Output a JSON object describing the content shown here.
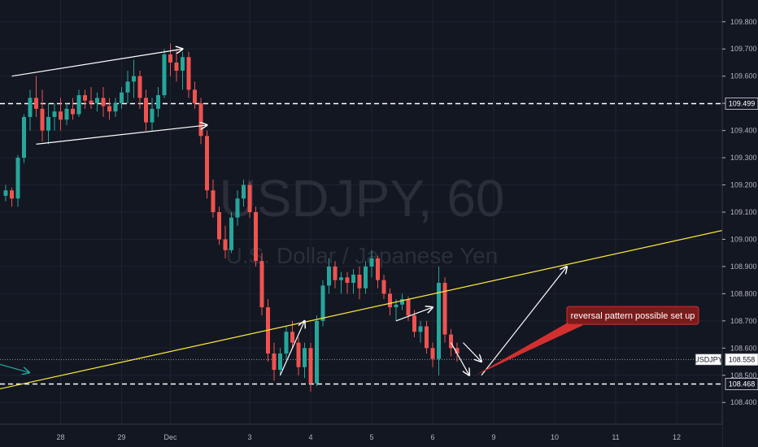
{
  "chart_data": {
    "type": "candlestick",
    "symbol": "USDJPY",
    "interval": "60",
    "instrument_name": "U.S. Dollar / Japanese Yen",
    "y_axis": {
      "ticks": [
        "109.800",
        "109.700",
        "109.600",
        "109.500",
        "109.400",
        "109.300",
        "109.200",
        "109.100",
        "109.000",
        "108.900",
        "108.800",
        "108.700",
        "108.600",
        "108.500",
        "108.400"
      ],
      "ylim": [
        108.32,
        109.88
      ]
    },
    "x_axis": {
      "ticks": [
        "28",
        "29",
        "Dec",
        "3",
        "4",
        "5",
        "6",
        "9",
        "10",
        "11",
        "12"
      ],
      "tick_index": [
        9,
        19,
        27,
        40,
        50,
        60,
        70,
        80,
        90,
        100,
        110
      ]
    },
    "price_tags": [
      {
        "label": "109.499",
        "value": 109.499,
        "style": "outline"
      },
      {
        "label": "USDJPY",
        "value": 108.558,
        "style": "name"
      },
      {
        "label": "108.558",
        "value": 108.558,
        "style": "filled"
      },
      {
        "label": "108.468",
        "value": 108.468,
        "style": "outline"
      }
    ],
    "horizontal_lines": [
      {
        "value": 109.499,
        "style": "dashed"
      },
      {
        "value": 108.468,
        "style": "dashed"
      },
      {
        "value": 108.558,
        "style": "dotted"
      }
    ],
    "trendline": {
      "from": [
        -3,
        108.44
      ],
      "to": [
        119,
        109.04
      ],
      "color": "#ffeb3b"
    },
    "arrows": [
      {
        "from": [
          1,
          109.6
        ],
        "to": [
          29,
          109.7
        ]
      },
      {
        "from": [
          5,
          109.35
        ],
        "to": [
          33,
          109.42
        ]
      },
      {
        "from": [
          45,
          108.5
        ],
        "to": [
          49,
          108.7
        ]
      },
      {
        "from": [
          64,
          108.7
        ],
        "to": [
          70,
          108.75
        ]
      },
      {
        "from": [
          73,
          108.62
        ],
        "to": [
          76,
          108.5
        ]
      },
      {
        "from": [
          75,
          108.62
        ],
        "to": [
          78,
          108.55
        ]
      },
      {
        "from": [
          78,
          108.5
        ],
        "to": [
          92,
          108.9
        ]
      }
    ],
    "annotation": {
      "text": "reversal pattern possible set up",
      "anchor": [
        77,
        108.5
      ],
      "box": [
        92,
        108.72
      ],
      "color": "#d32f2f"
    },
    "candles": [
      [
        109.16,
        109.2,
        109.14,
        109.18
      ],
      [
        109.18,
        109.19,
        109.12,
        109.15
      ],
      [
        109.15,
        109.31,
        109.12,
        109.3
      ],
      [
        109.3,
        109.46,
        109.28,
        109.45
      ],
      [
        109.45,
        109.55,
        109.4,
        109.52
      ],
      [
        109.52,
        109.6,
        109.45,
        109.48
      ],
      [
        109.48,
        109.55,
        109.36,
        109.4
      ],
      [
        109.4,
        109.5,
        109.35,
        109.45
      ],
      [
        109.45,
        109.5,
        109.4,
        109.47
      ],
      [
        109.47,
        109.52,
        109.4,
        109.44
      ],
      [
        109.44,
        109.5,
        109.42,
        109.48
      ],
      [
        109.48,
        109.52,
        109.44,
        109.46
      ],
      [
        109.46,
        109.55,
        109.45,
        109.53
      ],
      [
        109.53,
        109.55,
        109.48,
        109.51
      ],
      [
        109.51,
        109.56,
        109.48,
        109.5
      ],
      [
        109.5,
        109.54,
        109.47,
        109.52
      ],
      [
        109.52,
        109.56,
        109.45,
        109.49
      ],
      [
        109.49,
        109.52,
        109.44,
        109.47
      ],
      [
        109.47,
        109.52,
        109.45,
        109.5
      ],
      [
        109.5,
        109.56,
        109.48,
        109.54
      ],
      [
        109.54,
        109.62,
        109.5,
        109.58
      ],
      [
        109.58,
        109.66,
        109.52,
        109.6
      ],
      [
        109.6,
        109.62,
        109.48,
        109.52
      ],
      [
        109.52,
        109.55,
        109.4,
        109.43
      ],
      [
        109.43,
        109.52,
        109.4,
        109.48
      ],
      [
        109.48,
        109.56,
        109.45,
        109.53
      ],
      [
        109.53,
        109.7,
        109.52,
        109.68
      ],
      [
        109.68,
        109.72,
        109.6,
        109.65
      ],
      [
        109.65,
        109.7,
        109.58,
        109.62
      ],
      [
        109.62,
        109.69,
        109.55,
        109.67
      ],
      [
        109.67,
        109.69,
        109.52,
        109.55
      ],
      [
        109.55,
        109.58,
        109.48,
        109.5
      ],
      [
        109.5,
        109.52,
        109.35,
        109.38
      ],
      [
        109.38,
        109.4,
        109.15,
        109.18
      ],
      [
        109.18,
        109.22,
        109.08,
        109.1
      ],
      [
        109.1,
        109.12,
        108.98,
        109.0
      ],
      [
        109.0,
        109.05,
        108.93,
        108.96
      ],
      [
        108.96,
        109.1,
        108.95,
        109.08
      ],
      [
        109.08,
        109.18,
        109.05,
        109.15
      ],
      [
        109.15,
        109.22,
        109.12,
        109.2
      ],
      [
        109.2,
        109.21,
        109.08,
        109.1
      ],
      [
        109.1,
        109.12,
        108.9,
        108.92
      ],
      [
        108.92,
        108.95,
        108.72,
        108.75
      ],
      [
        108.75,
        108.78,
        108.55,
        108.58
      ],
      [
        108.58,
        108.62,
        108.48,
        108.52
      ],
      [
        108.52,
        108.6,
        108.5,
        108.58
      ],
      [
        108.58,
        108.68,
        108.56,
        108.66
      ],
      [
        108.66,
        108.7,
        108.6,
        108.62
      ],
      [
        108.62,
        108.64,
        108.5,
        108.53
      ],
      [
        108.53,
        108.62,
        108.49,
        108.6
      ],
      [
        108.6,
        108.62,
        108.44,
        108.47
      ],
      [
        108.47,
        108.72,
        108.46,
        108.7
      ],
      [
        108.7,
        108.85,
        108.68,
        108.83
      ],
      [
        108.83,
        108.93,
        108.8,
        108.9
      ],
      [
        108.9,
        108.92,
        108.82,
        108.85
      ],
      [
        108.85,
        108.88,
        108.8,
        108.86
      ],
      [
        108.86,
        108.88,
        108.8,
        108.84
      ],
      [
        108.84,
        108.89,
        108.8,
        108.87
      ],
      [
        108.87,
        108.9,
        108.78,
        108.82
      ],
      [
        108.82,
        108.92,
        108.8,
        108.9
      ],
      [
        108.9,
        108.96,
        108.86,
        108.93
      ],
      [
        108.93,
        108.94,
        108.82,
        108.85
      ],
      [
        108.85,
        108.87,
        108.78,
        108.8
      ],
      [
        108.8,
        108.82,
        108.72,
        108.75
      ],
      [
        108.75,
        108.78,
        108.7,
        108.76
      ],
      [
        108.76,
        108.8,
        108.74,
        108.78
      ],
      [
        108.78,
        108.79,
        108.7,
        108.72
      ],
      [
        108.72,
        108.74,
        108.64,
        108.66
      ],
      [
        108.66,
        108.7,
        108.62,
        108.68
      ],
      [
        108.68,
        108.7,
        108.58,
        108.6
      ],
      [
        108.6,
        108.62,
        108.53,
        108.56
      ],
      [
        108.56,
        108.9,
        108.5,
        108.84
      ],
      [
        108.84,
        108.86,
        108.62,
        108.65
      ],
      [
        108.65,
        108.67,
        108.57,
        108.6
      ],
      [
        108.6,
        108.62,
        108.55,
        108.58
      ]
    ]
  }
}
